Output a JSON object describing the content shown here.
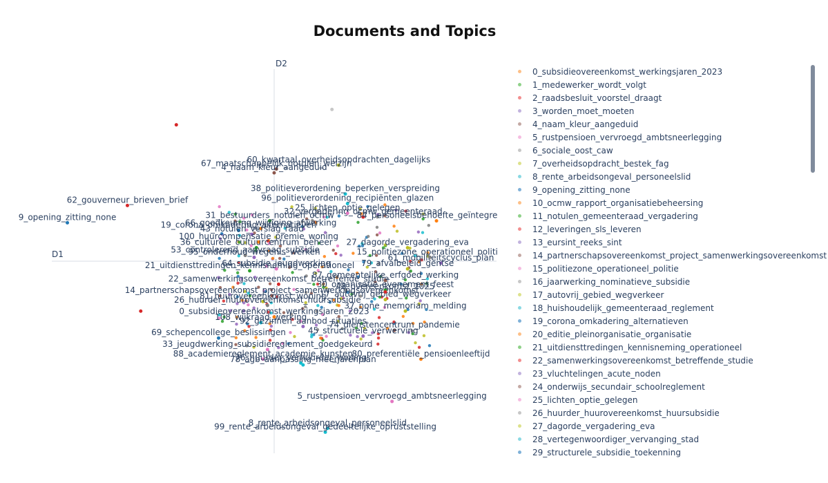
{
  "chart_data": {
    "type": "scatter",
    "title": "Documents and Topics",
    "xlabel": "D1",
    "ylabel": "D2",
    "xlim": [
      -1.0,
      1.0
    ],
    "ylim": [
      -1.0,
      1.0
    ],
    "grid": false,
    "legend_position": "right",
    "labeled_points": [
      {
        "label": "60_kwartaal_overheidsopdrachten_dagelijks",
        "x": 0.29,
        "y": 0.5,
        "color": "#bcbd22"
      },
      {
        "label": "67_maatschappelijk_notulen_welzijn",
        "x": 0.01,
        "y": 0.48,
        "color": "#8c564b"
      },
      {
        "label": "4_naam_kleur_aangeduid",
        "x": 0.0,
        "y": 0.46,
        "color": "#8c564b"
      },
      {
        "label": "38_politieverordening_beperken_verspreiding",
        "x": 0.32,
        "y": 0.35,
        "color": "#17becf"
      },
      {
        "label": "96_politieverordening_recipiënten_glazen",
        "x": 0.33,
        "y": 0.3,
        "color": "#17becf"
      },
      {
        "label": "62_gouverneur_brieven_brief",
        "x": -0.66,
        "y": 0.29,
        "color": "#d62728"
      },
      {
        "label": "9_opening_zitting_none",
        "x": -0.93,
        "y": 0.2,
        "color": "#1f77b4"
      },
      {
        "label": "32_vergadering_ocmw_gemeenteraad",
        "x": 0.4,
        "y": 0.23,
        "color": "#d62728"
      },
      {
        "label": "25_lichten_optie_gelegen",
        "x": 0.33,
        "y": 0.25,
        "color": "#e377c2"
      },
      {
        "label": "31_bestuurders_notulen_ocmw",
        "x": -0.02,
        "y": 0.21,
        "color": "#2ca02c"
      },
      {
        "label": "19_corona_omkadering_alternatieven",
        "x": -0.16,
        "y": 0.16,
        "color": "#1f77b4"
      },
      {
        "label": "66_goedkeuring_wijziging_afwerking",
        "x": -0.06,
        "y": 0.17,
        "color": "#ff7f0e"
      },
      {
        "label": "43_notulen_verslag_raad",
        "x": -0.1,
        "y": 0.14,
        "color": "#9467bd"
      },
      {
        "label": "100_huurcompensatie_premie_woning",
        "x": -0.07,
        "y": 0.1,
        "color": "#ff7f0e"
      },
      {
        "label": "36_culturele_cultuurcentrum_beheer",
        "x": -0.08,
        "y": 0.07,
        "color": "#2ca02c"
      },
      {
        "label": "53_controlerend_aanvraag_subsidie",
        "x": -0.13,
        "y": 0.03,
        "color": "#7f7f7f"
      },
      {
        "label": "95_onderhoud_wegenis_werken",
        "x": -0.09,
        "y": 0.02,
        "color": "#9467bd"
      },
      {
        "label": "21_uitdiensttredingen_kennisneming_operationeel",
        "x": -0.11,
        "y": -0.05,
        "color": "#2ca02c"
      },
      {
        "label": "64_subsidie_jeugdwerking",
        "x": 0.01,
        "y": -0.04,
        "color": "#e377c2"
      },
      {
        "label": "22_samenwerkingsovereenkomst_betreffende_studie",
        "x": 0.02,
        "y": -0.12,
        "color": "#d62728"
      },
      {
        "label": "14_partnerschapsovereenkomst_project_samenwerkingsovereenkomst",
        "x": -0.01,
        "y": -0.18,
        "color": "#8c564b"
      },
      {
        "label": "81_huurovereenkomst_woning",
        "x": -0.05,
        "y": -0.21,
        "color": "#bcbd22"
      },
      {
        "label": "26_huurder_huurovereenkomst_huursubsidie",
        "x": -0.03,
        "y": -0.23,
        "color": "#7f7f7f"
      },
      {
        "label": "108_wijkraad_werking",
        "x": -0.06,
        "y": -0.32,
        "color": "#17becf"
      },
      {
        "label": "0_subsidieovereenkomst_werkingsjaren_2023",
        "x": 0.0,
        "y": -0.29,
        "color": "#ff7f0e"
      },
      {
        "label": "92_gezinnen_aanbod_situaties",
        "x": 0.13,
        "y": -0.34,
        "color": "#9467bd"
      },
      {
        "label": "69_schepencollege_beslissingen",
        "x": -0.25,
        "y": -0.4,
        "color": "#1f77b4"
      },
      {
        "label": "33_jeugdwerking_subsidiereglement_goedgekeurd",
        "x": -0.03,
        "y": -0.46,
        "color": "#e377c2"
      },
      {
        "label": "17_autovrij_gebied_wegverkeer",
        "x": 0.5,
        "y": -0.2,
        "color": "#bcbd22"
      },
      {
        "label": "30_organisatie_evenement_feest",
        "x": 0.5,
        "y": -0.15,
        "color": "#2ca02c"
      },
      {
        "label": "61_mobiliteitscyclus_plan",
        "x": 0.75,
        "y": -0.01,
        "color": "#9467bd"
      },
      {
        "label": "15_politiezone_operationeel_politie",
        "x": 0.7,
        "y": 0.02,
        "color": "#7f7f7f"
      },
      {
        "label": "27_dagorde_vergadering_eva",
        "x": 0.6,
        "y": 0.07,
        "color": "#bcbd22"
      },
      {
        "label": "84_personeelsbehoefte_geïntegreerde",
        "x": 0.73,
        "y": 0.21,
        "color": "#ff7f0e"
      },
      {
        "label": "79_afvalbeleid_gentse",
        "x": 0.6,
        "y": -0.04,
        "color": "#bcbd22"
      },
      {
        "label": "87_gemeentelijke_erfgoed_werking",
        "x": 0.5,
        "y": -0.1,
        "color": "#8c564b"
      },
      {
        "label": "48_overeenkomst_2025",
        "x": 0.5,
        "y": -0.16,
        "color": "#d62728"
      },
      {
        "label": "37_none_memoriam_melding",
        "x": 0.59,
        "y": -0.26,
        "color": "#bcbd22"
      },
      {
        "label": "74_dienstencentrum_pandemie",
        "x": 0.54,
        "y": -0.36,
        "color": "#8c564b"
      },
      {
        "label": "45_structurele_verwerving",
        "x": 0.4,
        "y": -0.39,
        "color": "#9467bd"
      },
      {
        "label": "88_academiereglement_academie_kunsten",
        "x": -0.05,
        "y": -0.51,
        "color": "#e377c2"
      },
      {
        "label": "76_huurder_verhuurder_woning",
        "x": 0.12,
        "y": -0.53,
        "color": "#17becf"
      },
      {
        "label": "78_agb_aanpassing_meerjarenplan",
        "x": 0.13,
        "y": -0.54,
        "color": "#17becf"
      },
      {
        "label": "80_preferentiële_pensioenleeftijd",
        "x": 0.66,
        "y": -0.51,
        "color": "#ff7f0e"
      },
      {
        "label": "5_rustpensioen_vervroegd_ambtsneerlegging",
        "x": 0.53,
        "y": -0.73,
        "color": "#e377c2"
      },
      {
        "label": "8_rente_arbeidsongeval_personeelslid",
        "x": 0.24,
        "y": -0.87,
        "color": "#17becf"
      },
      {
        "label": "99_rente_arbeidsongeval_gedeeltelijke_opruststelling",
        "x": 0.23,
        "y": -0.89,
        "color": "#17becf"
      }
    ],
    "cluster_labels_unreadable": true,
    "unlabeled_points": [
      {
        "x": 0.26,
        "y": 0.79,
        "color": "#c7c7c7"
      },
      {
        "x": -0.44,
        "y": 0.71,
        "color": "#d62728"
      },
      {
        "x": -0.6,
        "y": -0.26,
        "color": "#d62728"
      },
      {
        "x": 0.56,
        "y": 0.27,
        "color": "#e5e5e5"
      }
    ]
  },
  "legend": {
    "items": [
      {
        "label": "0_subsidieovereenkomst_werkingsjaren_2023",
        "color": "#fdc088"
      },
      {
        "label": "1_medewerker_wordt_volgt",
        "color": "#8fd189"
      },
      {
        "label": "2_raadsbesluit_voorstel_draagt",
        "color": "#f28e8f"
      },
      {
        "label": "3_worden_moet_moeten",
        "color": "#c2b3de"
      },
      {
        "label": "4_naam_kleur_aangeduid",
        "color": "#c4a9a4"
      },
      {
        "label": "5_rustpensioen_vervroegd_ambtsneerlegging",
        "color": "#f5bde1"
      },
      {
        "label": "6_sociale_oost_caw",
        "color": "#c7c7c7"
      },
      {
        "label": "7_overheidsopdracht_bestek_fag",
        "color": "#dde28c"
      },
      {
        "label": "8_rente_arbeidsongeval_personeelslid",
        "color": "#8ad9e3"
      },
      {
        "label": "9_opening_zitting_none",
        "color": "#7fb1d8"
      },
      {
        "label": "10_ocmw_rapport_organisatiebeheersing",
        "color": "#fdc088"
      },
      {
        "label": "11_notulen_gemeenteraad_vergadering",
        "color": "#8fd189"
      },
      {
        "label": "12_leveringen_sls_leveren",
        "color": "#f28e8f"
      },
      {
        "label": "13_eursint_reeks_sint",
        "color": "#c2b3de"
      },
      {
        "label": "14_partnerschapsovereenkomst_project_samenwerkingsovereenkomst",
        "color": "#c4a9a4"
      },
      {
        "label": "15_politiezone_operationeel_politie",
        "color": "#f5bde1"
      },
      {
        "label": "16_jaarwerking_nominatieve_subsidie",
        "color": "#c7c7c7"
      },
      {
        "label": "17_autovrij_gebied_wegverkeer",
        "color": "#dde28c"
      },
      {
        "label": "18_huishoudelijk_gemeenteraad_reglement",
        "color": "#8ad9e3"
      },
      {
        "label": "19_corona_omkadering_alternatieven",
        "color": "#7fb1d8"
      },
      {
        "label": "20_editie_pleinorganisatie_organisatie",
        "color": "#fdc088"
      },
      {
        "label": "21_uitdiensttredingen_kennisneming_operationeel",
        "color": "#8fd189"
      },
      {
        "label": "22_samenwerkingsovereenkomst_betreffende_studie",
        "color": "#f28e8f"
      },
      {
        "label": "23_vluchtelingen_acute_noden",
        "color": "#c2b3de"
      },
      {
        "label": "24_onderwijs_secundair_schoolreglement",
        "color": "#c4a9a4"
      },
      {
        "label": "25_lichten_optie_gelegen",
        "color": "#f5bde1"
      },
      {
        "label": "26_huurder_huurovereenkomst_huursubsidie",
        "color": "#c7c7c7"
      },
      {
        "label": "27_dagorde_vergadering_eva",
        "color": "#dde28c"
      },
      {
        "label": "28_vertegenwoordiger_vervanging_stad",
        "color": "#8ad9e3"
      },
      {
        "label": "29_structurele_subsidie_toekenning",
        "color": "#7fb1d8"
      }
    ]
  }
}
